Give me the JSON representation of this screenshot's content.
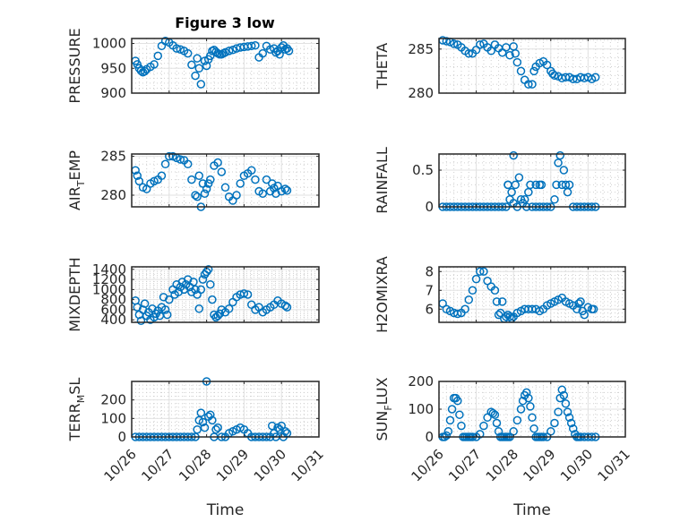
{
  "figure": {
    "title": "Figure 3 low",
    "marker_color": "#0072BD",
    "axes_color": "#262626"
  },
  "chart_data": [
    {
      "type": "scatter",
      "id": "pressure",
      "title": "Figure 3 low",
      "ylabel_main": "PRESSURE",
      "ylabel_sub": "",
      "ylabel_tail": "",
      "xlabel": "",
      "xlim": [
        0,
        5
      ],
      "ylim": [
        900,
        1010
      ],
      "yticks": [
        900,
        950,
        1000
      ],
      "ytick_labels": [
        "900",
        "950",
        "1000"
      ],
      "xticks": [
        0,
        1,
        2,
        3,
        4,
        5
      ],
      "xtick_labels": [],
      "x": [
        0.1,
        0.15,
        0.2,
        0.25,
        0.3,
        0.35,
        0.4,
        0.5,
        0.6,
        0.7,
        0.8,
        0.9,
        1.0,
        1.1,
        1.2,
        1.3,
        1.4,
        1.5,
        1.6,
        1.7,
        1.75,
        1.8,
        1.85,
        1.95,
        2.0,
        2.05,
        2.1,
        2.15,
        2.2,
        2.25,
        2.3,
        2.35,
        2.4,
        2.45,
        2.5,
        2.6,
        2.7,
        2.8,
        2.9,
        3.0,
        3.1,
        3.2,
        3.3,
        3.4,
        3.5,
        3.6,
        3.7,
        3.8,
        3.85,
        3.9,
        3.95,
        4.0,
        4.05,
        4.1,
        4.15,
        4.2
      ],
      "y": [
        965,
        958,
        950,
        945,
        942,
        944,
        948,
        953,
        958,
        975,
        995,
        1005,
        1002,
        996,
        990,
        988,
        985,
        980,
        957,
        935,
        970,
        950,
        918,
        965,
        955,
        968,
        975,
        985,
        987,
        983,
        980,
        978,
        978,
        980,
        982,
        985,
        987,
        990,
        992,
        993,
        994,
        995,
        996,
        972,
        980,
        995,
        988,
        990,
        982,
        985,
        978,
        992,
        996,
        988,
        990,
        985
      ]
    },
    {
      "type": "scatter",
      "id": "theta",
      "ylabel_main": "THETA",
      "ylabel_sub": "",
      "ylabel_tail": "",
      "xlabel": "",
      "xlim": [
        0,
        5
      ],
      "ylim": [
        280,
        286.2
      ],
      "yticks": [
        280,
        285
      ],
      "ytick_labels": [
        "280",
        "285"
      ],
      "xticks": [
        0,
        1,
        2,
        3,
        4,
        5
      ],
      "xtick_labels": [],
      "x": [
        0.1,
        0.2,
        0.3,
        0.4,
        0.5,
        0.6,
        0.7,
        0.8,
        0.9,
        1.0,
        1.1,
        1.2,
        1.3,
        1.4,
        1.5,
        1.6,
        1.7,
        1.8,
        1.9,
        2.0,
        2.05,
        2.1,
        2.2,
        2.3,
        2.4,
        2.5,
        2.55,
        2.6,
        2.7,
        2.8,
        2.9,
        3.0,
        3.05,
        3.1,
        3.2,
        3.3,
        3.4,
        3.5,
        3.6,
        3.7,
        3.8,
        3.9,
        4.0,
        4.1,
        4.2
      ],
      "y": [
        286,
        285.9,
        285.8,
        285.6,
        285.5,
        285.2,
        284.8,
        284.5,
        284.5,
        284.9,
        285.5,
        285.6,
        285.2,
        284.8,
        285.5,
        285.1,
        284.6,
        285.2,
        284.3,
        285.3,
        284.5,
        283.5,
        282.5,
        281.5,
        281,
        281,
        282.5,
        283,
        283.4,
        283.6,
        283.2,
        282.5,
        282.2,
        282,
        281.9,
        281.7,
        281.8,
        281.8,
        281.6,
        281.6,
        281.8,
        281.7,
        281.8,
        281.6,
        281.8
      ]
    },
    {
      "type": "scatter",
      "id": "air-temp",
      "ylabel_main": "AIR",
      "ylabel_sub": "T",
      "ylabel_tail": "EMP",
      "xlabel": "",
      "xlim": [
        0,
        5
      ],
      "ylim": [
        278.5,
        285.3
      ],
      "yticks": [
        280,
        285
      ],
      "ytick_labels": [
        "280",
        "285"
      ],
      "xticks": [
        0,
        1,
        2,
        3,
        4,
        5
      ],
      "xtick_labels": [],
      "x": [
        0.1,
        0.15,
        0.2,
        0.3,
        0.4,
        0.5,
        0.6,
        0.7,
        0.8,
        0.9,
        1.0,
        1.1,
        1.2,
        1.3,
        1.4,
        1.5,
        1.6,
        1.7,
        1.75,
        1.8,
        1.85,
        1.9,
        1.95,
        2.0,
        2.05,
        2.1,
        2.2,
        2.3,
        2.4,
        2.5,
        2.6,
        2.7,
        2.8,
        2.9,
        3.0,
        3.1,
        3.2,
        3.3,
        3.4,
        3.5,
        3.6,
        3.7,
        3.75,
        3.8,
        3.85,
        3.9,
        4.0,
        4.1,
        4.15
      ],
      "y": [
        283.2,
        282.5,
        281.8,
        281,
        280.8,
        281.5,
        281.8,
        282,
        282.5,
        284,
        285,
        285,
        284.8,
        284.6,
        284.5,
        284,
        282,
        280,
        279.8,
        282.5,
        278.5,
        281.5,
        280.2,
        280.8,
        281.5,
        282,
        283.8,
        284.2,
        283,
        281,
        279.8,
        279.3,
        280,
        281.5,
        282.5,
        282.8,
        283.2,
        282,
        280.5,
        280.2,
        282,
        280.5,
        281.5,
        280.9,
        280.2,
        281.2,
        280.5,
        280.8,
        280.6
      ]
    },
    {
      "type": "scatter",
      "id": "rainfall",
      "ylabel_main": "RAINFALL",
      "ylabel_sub": "",
      "ylabel_tail": "",
      "xlabel": "",
      "xlim": [
        0,
        5
      ],
      "ylim": [
        0,
        0.72
      ],
      "yticks": [
        0,
        0.5
      ],
      "ytick_labels": [
        "0",
        "0.5"
      ],
      "xticks": [
        0,
        1,
        2,
        3,
        4,
        5
      ],
      "xtick_labels": [],
      "x": [
        0.1,
        0.2,
        0.3,
        0.4,
        0.5,
        0.6,
        0.7,
        0.8,
        0.9,
        1.0,
        1.1,
        1.2,
        1.3,
        1.4,
        1.5,
        1.6,
        1.7,
        1.8,
        1.85,
        1.9,
        1.95,
        2.0,
        2.05,
        2.1,
        2.15,
        2.2,
        2.25,
        2.3,
        2.35,
        2.4,
        2.45,
        2.5,
        2.6,
        2.7,
        2.8,
        2.9,
        3.0,
        3.1,
        3.15,
        3.2,
        3.25,
        3.3,
        3.35,
        3.4,
        3.45,
        3.5,
        3.6,
        3.7,
        3.8,
        3.9,
        4.0,
        4.1,
        4.2,
        2.0,
        1.85,
        2.6,
        2.7,
        2.75
      ],
      "y": [
        0,
        0,
        0,
        0,
        0,
        0,
        0,
        0,
        0,
        0,
        0,
        0,
        0,
        0,
        0,
        0,
        0,
        0,
        0.3,
        0.1,
        0.2,
        0.7,
        0.3,
        0,
        0.4,
        0.1,
        0.05,
        0.1,
        0,
        0.2,
        0.3,
        0,
        0,
        0,
        0,
        0,
        0,
        0.1,
        0.3,
        0.6,
        0.7,
        0.3,
        0.5,
        0.3,
        0.2,
        0.3,
        0,
        0,
        0,
        0,
        0,
        0,
        0,
        0.05,
        0.3,
        0.3,
        0.3,
        0.3
      ]
    },
    {
      "type": "scatter",
      "id": "mixdepth",
      "ylabel_main": "MIXDEPTH",
      "ylabel_sub": "",
      "ylabel_tail": "",
      "xlabel": "",
      "xlim": [
        0,
        5
      ],
      "ylim": [
        350,
        1450
      ],
      "yticks": [
        400,
        600,
        800,
        1000,
        1200,
        1400
      ],
      "ytick_labels": [
        "400",
        "600",
        "800",
        "1000",
        "1200",
        "1400"
      ],
      "xticks": [
        0,
        1,
        2,
        3,
        4,
        5
      ],
      "xtick_labels": [],
      "x": [
        0.1,
        0.15,
        0.2,
        0.25,
        0.3,
        0.35,
        0.4,
        0.45,
        0.5,
        0.55,
        0.6,
        0.65,
        0.7,
        0.75,
        0.8,
        0.85,
        0.9,
        0.95,
        1.0,
        1.1,
        1.15,
        1.2,
        1.25,
        1.3,
        1.35,
        1.4,
        1.45,
        1.5,
        1.55,
        1.6,
        1.65,
        1.7,
        1.75,
        1.8,
        1.85,
        1.9,
        1.95,
        2.0,
        2.05,
        2.1,
        2.15,
        2.2,
        2.25,
        2.3,
        2.35,
        2.4,
        2.5,
        2.6,
        2.7,
        2.8,
        2.9,
        3.0,
        3.1,
        3.2,
        3.3,
        3.4,
        3.5,
        3.6,
        3.7,
        3.8,
        3.9,
        4.0,
        4.1,
        4.15
      ],
      "y": [
        780,
        650,
        500,
        380,
        600,
        720,
        480,
        550,
        400,
        620,
        450,
        520,
        580,
        480,
        650,
        850,
        600,
        500,
        800,
        1000,
        900,
        1100,
        950,
        1050,
        1150,
        1000,
        1100,
        1200,
        1050,
        950,
        1150,
        1000,
        900,
        620,
        1000,
        1200,
        1300,
        1350,
        1400,
        1100,
        800,
        500,
        450,
        480,
        520,
        600,
        550,
        620,
        750,
        850,
        900,
        920,
        900,
        700,
        600,
        650,
        550,
        600,
        650,
        700,
        780,
        720,
        680,
        650
      ]
    },
    {
      "type": "scatter",
      "id": "h2omixra",
      "ylabel_main": "H2OMIXRA",
      "ylabel_sub": "",
      "ylabel_tail": "",
      "xlabel": "",
      "xlim": [
        0,
        5
      ],
      "ylim": [
        5.3,
        8.25
      ],
      "yticks": [
        6,
        7,
        8
      ],
      "ytick_labels": [
        "6",
        "7",
        "8"
      ],
      "xticks": [
        0,
        1,
        2,
        3,
        4,
        5
      ],
      "xtick_labels": [],
      "x": [
        0.1,
        0.2,
        0.3,
        0.4,
        0.5,
        0.6,
        0.7,
        0.8,
        0.9,
        1.0,
        1.1,
        1.2,
        1.3,
        1.4,
        1.5,
        1.55,
        1.6,
        1.65,
        1.7,
        1.75,
        1.8,
        1.85,
        1.9,
        1.95,
        2.0,
        2.1,
        2.2,
        2.3,
        2.4,
        2.5,
        2.6,
        2.7,
        2.8,
        2.9,
        3.0,
        3.1,
        3.2,
        3.3,
        3.4,
        3.5,
        3.6,
        3.7,
        3.75,
        3.8,
        3.85,
        3.9,
        4.0,
        4.1,
        4.15
      ],
      "y": [
        6.3,
        6.0,
        5.9,
        5.8,
        5.75,
        5.8,
        6.0,
        6.5,
        7.0,
        7.6,
        8.0,
        8.0,
        7.5,
        7.2,
        7.0,
        6.4,
        5.7,
        5.8,
        6.4,
        5.5,
        5.6,
        5.7,
        5.6,
        5.5,
        5.6,
        5.8,
        5.9,
        6.0,
        6.0,
        6.0,
        6.0,
        5.9,
        6.0,
        6.2,
        6.3,
        6.4,
        6.5,
        6.6,
        6.4,
        6.3,
        6.2,
        6.0,
        6.3,
        6.4,
        5.9,
        5.7,
        6.1,
        6.0,
        6.0
      ]
    },
    {
      "type": "scatter",
      "id": "terr-msl",
      "ylabel_main": "TERR",
      "ylabel_sub": "M",
      "ylabel_tail": "SL",
      "xlabel": "Time",
      "xlim": [
        0,
        5
      ],
      "ylim": [
        0,
        300
      ],
      "yticks": [
        0,
        100,
        200
      ],
      "ytick_labels": [
        "0",
        "100",
        "200"
      ],
      "xticks": [
        0,
        1,
        2,
        3,
        4,
        5
      ],
      "xtick_labels": [
        "10/26",
        "10/27",
        "10/28",
        "10/29",
        "10/30",
        "10/31"
      ],
      "x": [
        0.1,
        0.2,
        0.3,
        0.4,
        0.5,
        0.6,
        0.7,
        0.8,
        0.9,
        1.0,
        1.1,
        1.2,
        1.3,
        1.4,
        1.5,
        1.6,
        1.7,
        1.75,
        1.8,
        1.85,
        1.9,
        1.95,
        2.0,
        2.05,
        2.1,
        2.15,
        2.2,
        2.25,
        2.3,
        2.4,
        2.5,
        2.6,
        2.7,
        2.8,
        2.9,
        3.0,
        3.1,
        3.2,
        3.3,
        3.4,
        3.5,
        3.6,
        3.7,
        3.75,
        3.8,
        3.85,
        3.9,
        3.95,
        4.0,
        4.05,
        4.1,
        4.15
      ],
      "y": [
        0,
        0,
        0,
        0,
        0,
        0,
        0,
        0,
        0,
        0,
        0,
        0,
        0,
        0,
        0,
        0,
        0,
        40,
        90,
        130,
        80,
        50,
        300,
        110,
        120,
        90,
        0,
        40,
        50,
        0,
        0,
        20,
        30,
        40,
        50,
        40,
        20,
        0,
        0,
        0,
        0,
        0,
        0,
        60,
        20,
        0,
        50,
        40,
        60,
        0,
        30,
        20
      ]
    },
    {
      "type": "scatter",
      "id": "sun-flux",
      "ylabel_main": "SUN",
      "ylabel_sub": "F",
      "ylabel_tail": "LUX",
      "xlabel": "Time",
      "xlim": [
        0,
        5
      ],
      "ylim": [
        0,
        200
      ],
      "yticks": [
        0,
        100,
        200
      ],
      "ytick_labels": [
        "0",
        "100",
        "200"
      ],
      "xticks": [
        0,
        1,
        2,
        3,
        4,
        5
      ],
      "xtick_labels": [
        "10/26",
        "10/27",
        "10/28",
        "10/29",
        "10/30",
        "10/31"
      ],
      "x": [
        0.1,
        0.15,
        0.2,
        0.25,
        0.3,
        0.35,
        0.4,
        0.45,
        0.5,
        0.55,
        0.6,
        0.65,
        0.7,
        0.75,
        0.8,
        0.85,
        0.9,
        1.0,
        1.1,
        1.2,
        1.3,
        1.4,
        1.45,
        1.5,
        1.55,
        1.6,
        1.65,
        1.7,
        1.75,
        1.8,
        1.85,
        1.9,
        2.0,
        2.1,
        2.2,
        2.25,
        2.3,
        2.35,
        2.4,
        2.45,
        2.5,
        2.55,
        2.6,
        2.65,
        2.7,
        2.75,
        2.8,
        2.9,
        3.0,
        3.1,
        3.2,
        3.25,
        3.3,
        3.35,
        3.4,
        3.45,
        3.5,
        3.55,
        3.6,
        3.65,
        3.7,
        3.75,
        3.8,
        3.9,
        4.0,
        4.1,
        4.2
      ],
      "y": [
        0,
        0,
        5,
        20,
        60,
        100,
        140,
        140,
        130,
        80,
        40,
        0,
        0,
        0,
        0,
        0,
        0,
        0,
        10,
        40,
        70,
        90,
        85,
        80,
        50,
        20,
        0,
        0,
        0,
        0,
        0,
        0,
        20,
        60,
        100,
        130,
        150,
        160,
        140,
        110,
        70,
        30,
        0,
        0,
        0,
        0,
        0,
        0,
        20,
        50,
        90,
        140,
        170,
        150,
        120,
        90,
        70,
        50,
        30,
        10,
        0,
        0,
        0,
        0,
        0,
        0,
        0
      ]
    }
  ]
}
